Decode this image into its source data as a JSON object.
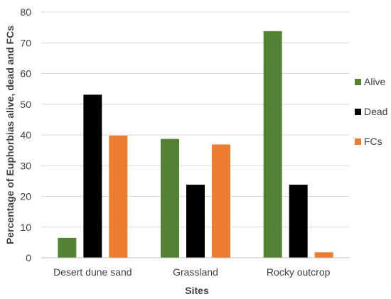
{
  "chart_data": {
    "type": "bar",
    "categories": [
      "Desert dune sand",
      "Grassland",
      "Rocky outcrop"
    ],
    "series": [
      {
        "name": "Alive",
        "values": [
          6.5,
          38.7,
          73.8
        ],
        "color": "#548235"
      },
      {
        "name": "Dead",
        "values": [
          53.1,
          23.8,
          23.8
        ],
        "color": "#000000"
      },
      {
        "name": "FCs",
        "values": [
          39.8,
          36.9,
          1.8
        ],
        "color": "#ED7D31"
      }
    ],
    "xlabel": "Sites",
    "ylabel": "Percentage of Euphorbias alive, dead and FCs",
    "ylim": [
      0,
      80
    ],
    "yticks": [
      0,
      10,
      20,
      30,
      40,
      50,
      60,
      70,
      80
    ],
    "grid": true,
    "legend": "right"
  }
}
